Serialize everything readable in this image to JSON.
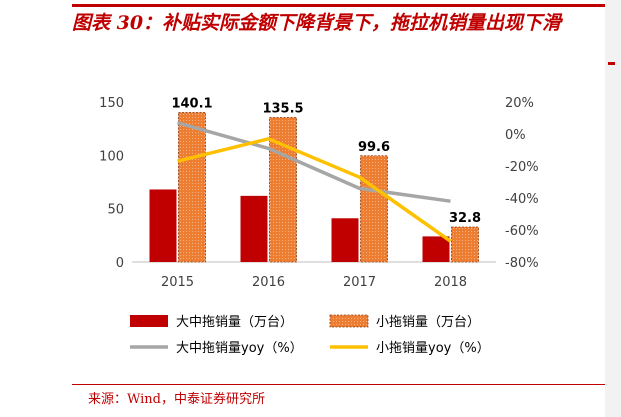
{
  "title": "图表 30：补贴实际金额下降背景下，拖拉机销量出现下滑",
  "source": "来源：Wind，中泰证券研究所",
  "chart_data": {
    "type": "bar+line",
    "categories": [
      "2015",
      "2016",
      "2017",
      "2018"
    ],
    "series": [
      {
        "name": "大中拖销量（万台）",
        "kind": "bar",
        "axis": "left",
        "color": "#c00000",
        "values": [
          68,
          62,
          41,
          24
        ]
      },
      {
        "name": "小拖销量（万台）",
        "kind": "bar",
        "axis": "left",
        "color": "#ed7d31",
        "hatched": true,
        "values": [
          140.1,
          135.5,
          99.6,
          32.8
        ]
      },
      {
        "name": "大中拖销量yoy（%）",
        "kind": "line",
        "axis": "right",
        "color": "#a6a6a6",
        "values": [
          7,
          -9,
          -34,
          -42
        ]
      },
      {
        "name": "小拖销量yoy（%）",
        "kind": "line",
        "axis": "right",
        "color": "#ffc000",
        "values": [
          -17,
          -3,
          -27,
          -67
        ]
      }
    ],
    "data_labels": [
      "140.1",
      "135.5",
      "99.6",
      "32.8"
    ],
    "y_left": {
      "min": 0,
      "max": 150,
      "ticks": [
        "0",
        "50",
        "100",
        "150"
      ]
    },
    "y_right": {
      "min": -80,
      "max": 20,
      "ticks": [
        "20%",
        "0%",
        "-20%",
        "-40%",
        "-60%",
        "-80%"
      ]
    },
    "legend_position": "bottom"
  }
}
